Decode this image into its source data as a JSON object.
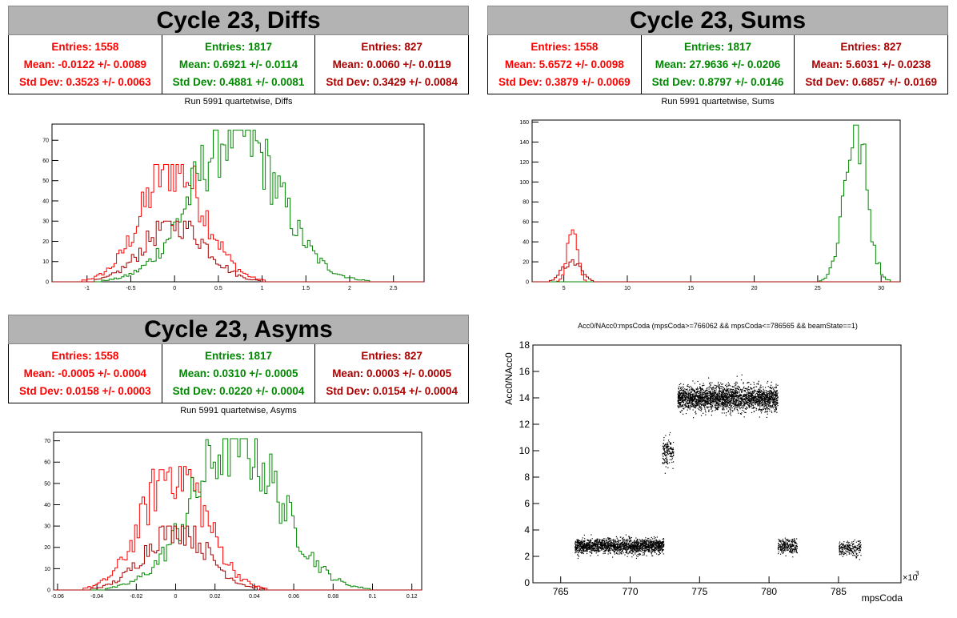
{
  "colors": {
    "s1": "#ff0000",
    "s2": "#008800",
    "s3": "#aa0000",
    "title_bg": "#b3b3b3"
  },
  "panels": {
    "diffs": {
      "title": "Cycle 23, Diffs",
      "subtitle": "Run 5991 quartetwise, Diffs",
      "stats": [
        {
          "entries": "Entries: 1558",
          "mean": "Mean: -0.0122 +/- 0.0089",
          "std": "Std Dev: 0.3523 +/- 0.0063"
        },
        {
          "entries": "Entries: 1817",
          "mean": "Mean: 0.6921 +/- 0.0114",
          "std": "Std Dev: 0.4881 +/- 0.0081"
        },
        {
          "entries": "Entries: 827",
          "mean": "Mean: 0.0060 +/- 0.0119",
          "std": "Std Dev: 0.3429 +/- 0.0084"
        }
      ]
    },
    "sums": {
      "title": "Cycle 23, Sums",
      "subtitle": "Run 5991 quartetwise, Sums",
      "stats": [
        {
          "entries": "Entries: 1558",
          "mean": "Mean: 5.6572 +/- 0.0098",
          "std": "Std Dev: 0.3879 +/- 0.0069"
        },
        {
          "entries": "Entries: 1817",
          "mean": "Mean: 27.9636 +/- 0.0206",
          "std": "Std Dev: 0.8797 +/- 0.0146"
        },
        {
          "entries": "Entries: 827",
          "mean": "Mean: 5.6031 +/- 0.0238",
          "std": "Std Dev: 0.6857 +/- 0.0169"
        }
      ]
    },
    "asyms": {
      "title": "Cycle 23, Asyms",
      "subtitle": "Run 5991 quartetwise, Asyms",
      "stats": [
        {
          "entries": "Entries: 1558",
          "mean": "Mean: -0.0005 +/- 0.0004",
          "std": "Std Dev: 0.0158 +/- 0.0003"
        },
        {
          "entries": "Entries: 1817",
          "mean": "Mean: 0.0310 +/- 0.0005",
          "std": "Std Dev: 0.0220 +/- 0.0004"
        },
        {
          "entries": "Entries: 827",
          "mean": "Mean: 0.0003 +/- 0.0005",
          "std": "Std Dev: 0.0154 +/- 0.0004"
        }
      ]
    },
    "scatter": {
      "title": "Acc0/NAcc0:mpsCoda (mpsCoda>=766062 && mpsCoda<=786565 && beamState==1)",
      "xlabel": "mpsCoda",
      "ylabel": "Acc0/NAcc0",
      "exponent_base": "×10",
      "exponent_power": "3"
    }
  },
  "chart_data": [
    {
      "type": "histogram",
      "name": "diffs",
      "xlim": [
        -1.4,
        2.85
      ],
      "ylim": [
        0,
        78
      ],
      "xticks": [
        "-1",
        "-0.5",
        "0",
        "0.5",
        "1",
        "1.5",
        "2",
        "2.5"
      ],
      "yticks": [
        "0",
        "10",
        "20",
        "30",
        "40",
        "50",
        "60",
        "70"
      ],
      "series": [
        {
          "color": "s1",
          "mean": -0.0122,
          "std": 0.3523,
          "peak": 58
        },
        {
          "color": "s2",
          "mean": 0.6921,
          "std": 0.4881,
          "peak": 75
        },
        {
          "color": "s3",
          "mean": 0.006,
          "std": 0.3429,
          "peak": 30
        }
      ]
    },
    {
      "type": "histogram",
      "name": "sums",
      "xlim": [
        2.5,
        31.5
      ],
      "ylim": [
        0,
        162
      ],
      "xticks": [
        "5",
        "10",
        "15",
        "20",
        "25",
        "30"
      ],
      "yticks": [
        "0",
        "20",
        "40",
        "60",
        "80",
        "100",
        "120",
        "140",
        "160"
      ],
      "series": [
        {
          "color": "s1",
          "mean": 5.6572,
          "std": 0.3879,
          "peak": 52
        },
        {
          "color": "s2",
          "mean": 27.9636,
          "std": 0.8797,
          "peak": 157
        },
        {
          "color": "s3",
          "mean": 5.6031,
          "std": 0.6857,
          "peak": 22
        }
      ]
    },
    {
      "type": "histogram",
      "name": "asyms",
      "xlim": [
        -0.062,
        0.125
      ],
      "ylim": [
        0,
        74
      ],
      "xticks": [
        "-0.06",
        "-0.04",
        "-0.02",
        "0",
        "0.02",
        "0.04",
        "0.06",
        "0.08",
        "0.1",
        "0.12"
      ],
      "yticks": [
        "0",
        "10",
        "20",
        "30",
        "40",
        "50",
        "60",
        "70"
      ],
      "series": [
        {
          "color": "s1",
          "mean": -0.0005,
          "std": 0.0158,
          "peak": 58
        },
        {
          "color": "s2",
          "mean": 0.031,
          "std": 0.022,
          "peak": 71
        },
        {
          "color": "s3",
          "mean": 0.0003,
          "std": 0.0154,
          "peak": 30
        }
      ]
    },
    {
      "type": "scatter",
      "name": "acc0_vs_mpscoda",
      "xlim": [
        763,
        789.5
      ],
      "ylim": [
        0,
        18
      ],
      "xticks": [
        "765",
        "770",
        "775",
        "780",
        "785"
      ],
      "yticks": [
        "0",
        "2",
        "4",
        "6",
        "8",
        "10",
        "12",
        "14",
        "16",
        "18"
      ],
      "clusters": [
        {
          "x": [
            766,
            772.4
          ],
          "y": [
            2.8,
            0.5
          ],
          "n": 1800
        },
        {
          "x": [
            772.3,
            773.1
          ],
          "y": [
            10,
            0.9
          ],
          "n": 160
        },
        {
          "x": [
            773.4,
            780.6
          ],
          "y": [
            14,
            0.85
          ],
          "n": 2600
        },
        {
          "x": [
            780.6,
            782
          ],
          "y": [
            2.8,
            0.5
          ],
          "n": 260
        },
        {
          "x": [
            785,
            786.6
          ],
          "y": [
            2.6,
            0.5
          ],
          "n": 230
        }
      ]
    }
  ]
}
